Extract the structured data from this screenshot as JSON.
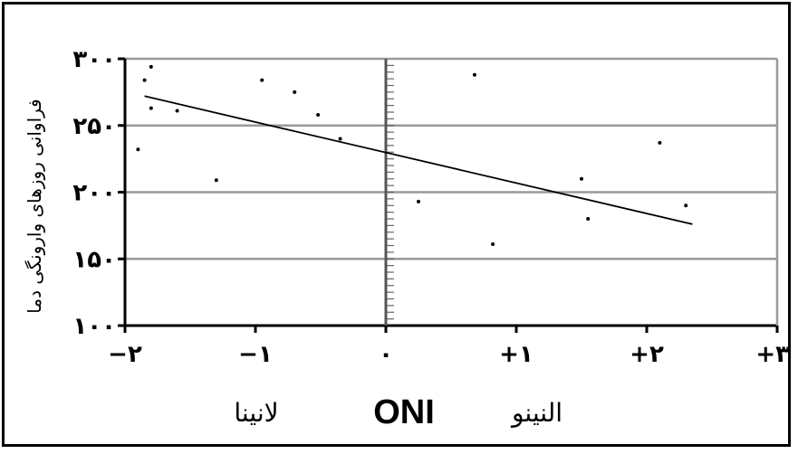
{
  "chart_data": {
    "type": "scatter",
    "title": "",
    "xlabel": "ONI",
    "ylabel": "فراوانی روزهای وارونگی دما",
    "xlim": [
      -2,
      3
    ],
    "ylim": [
      100,
      300
    ],
    "x_ticks": [
      -2,
      -1,
      0,
      1,
      2,
      3
    ],
    "y_ticks": [
      100,
      150,
      200,
      250,
      300
    ],
    "x_tick_labels": [
      "−۲",
      "−۱",
      "۰",
      "+۱",
      "+۲",
      "+۳"
    ],
    "y_tick_labels": [
      "۱۰۰",
      "۱۵۰",
      "۲۰۰",
      "۲۵۰",
      "۳۰۰"
    ],
    "grid": "horizontal",
    "bottom_labels": {
      "left": "لانینا",
      "center": "ONI",
      "right": "النینو"
    },
    "series": [
      {
        "points": [
          {
            "x": -1.8,
            "y": 294
          },
          {
            "x": -1.85,
            "y": 284
          },
          {
            "x": -1.8,
            "y": 263
          },
          {
            "x": -1.6,
            "y": 261
          },
          {
            "x": -1.9,
            "y": 232
          },
          {
            "x": -1.3,
            "y": 209
          },
          {
            "x": -0.95,
            "y": 284
          },
          {
            "x": -0.7,
            "y": 275
          },
          {
            "x": -0.52,
            "y": 258
          },
          {
            "x": -0.35,
            "y": 240
          },
          {
            "x": 0.25,
            "y": 193
          },
          {
            "x": 0.68,
            "y": 288
          },
          {
            "x": 0.82,
            "y": 161
          },
          {
            "x": 1.5,
            "y": 210
          },
          {
            "x": 1.55,
            "y": 180
          },
          {
            "x": 2.1,
            "y": 237
          },
          {
            "x": 2.3,
            "y": 190
          }
        ]
      }
    ],
    "trend_line": {
      "x": [
        -1.85,
        2.35
      ],
      "y": [
        272,
        176
      ]
    },
    "colors": {
      "axis": "#000000",
      "grid": "#999999",
      "point": "#000000",
      "trend": "#000000"
    }
  }
}
